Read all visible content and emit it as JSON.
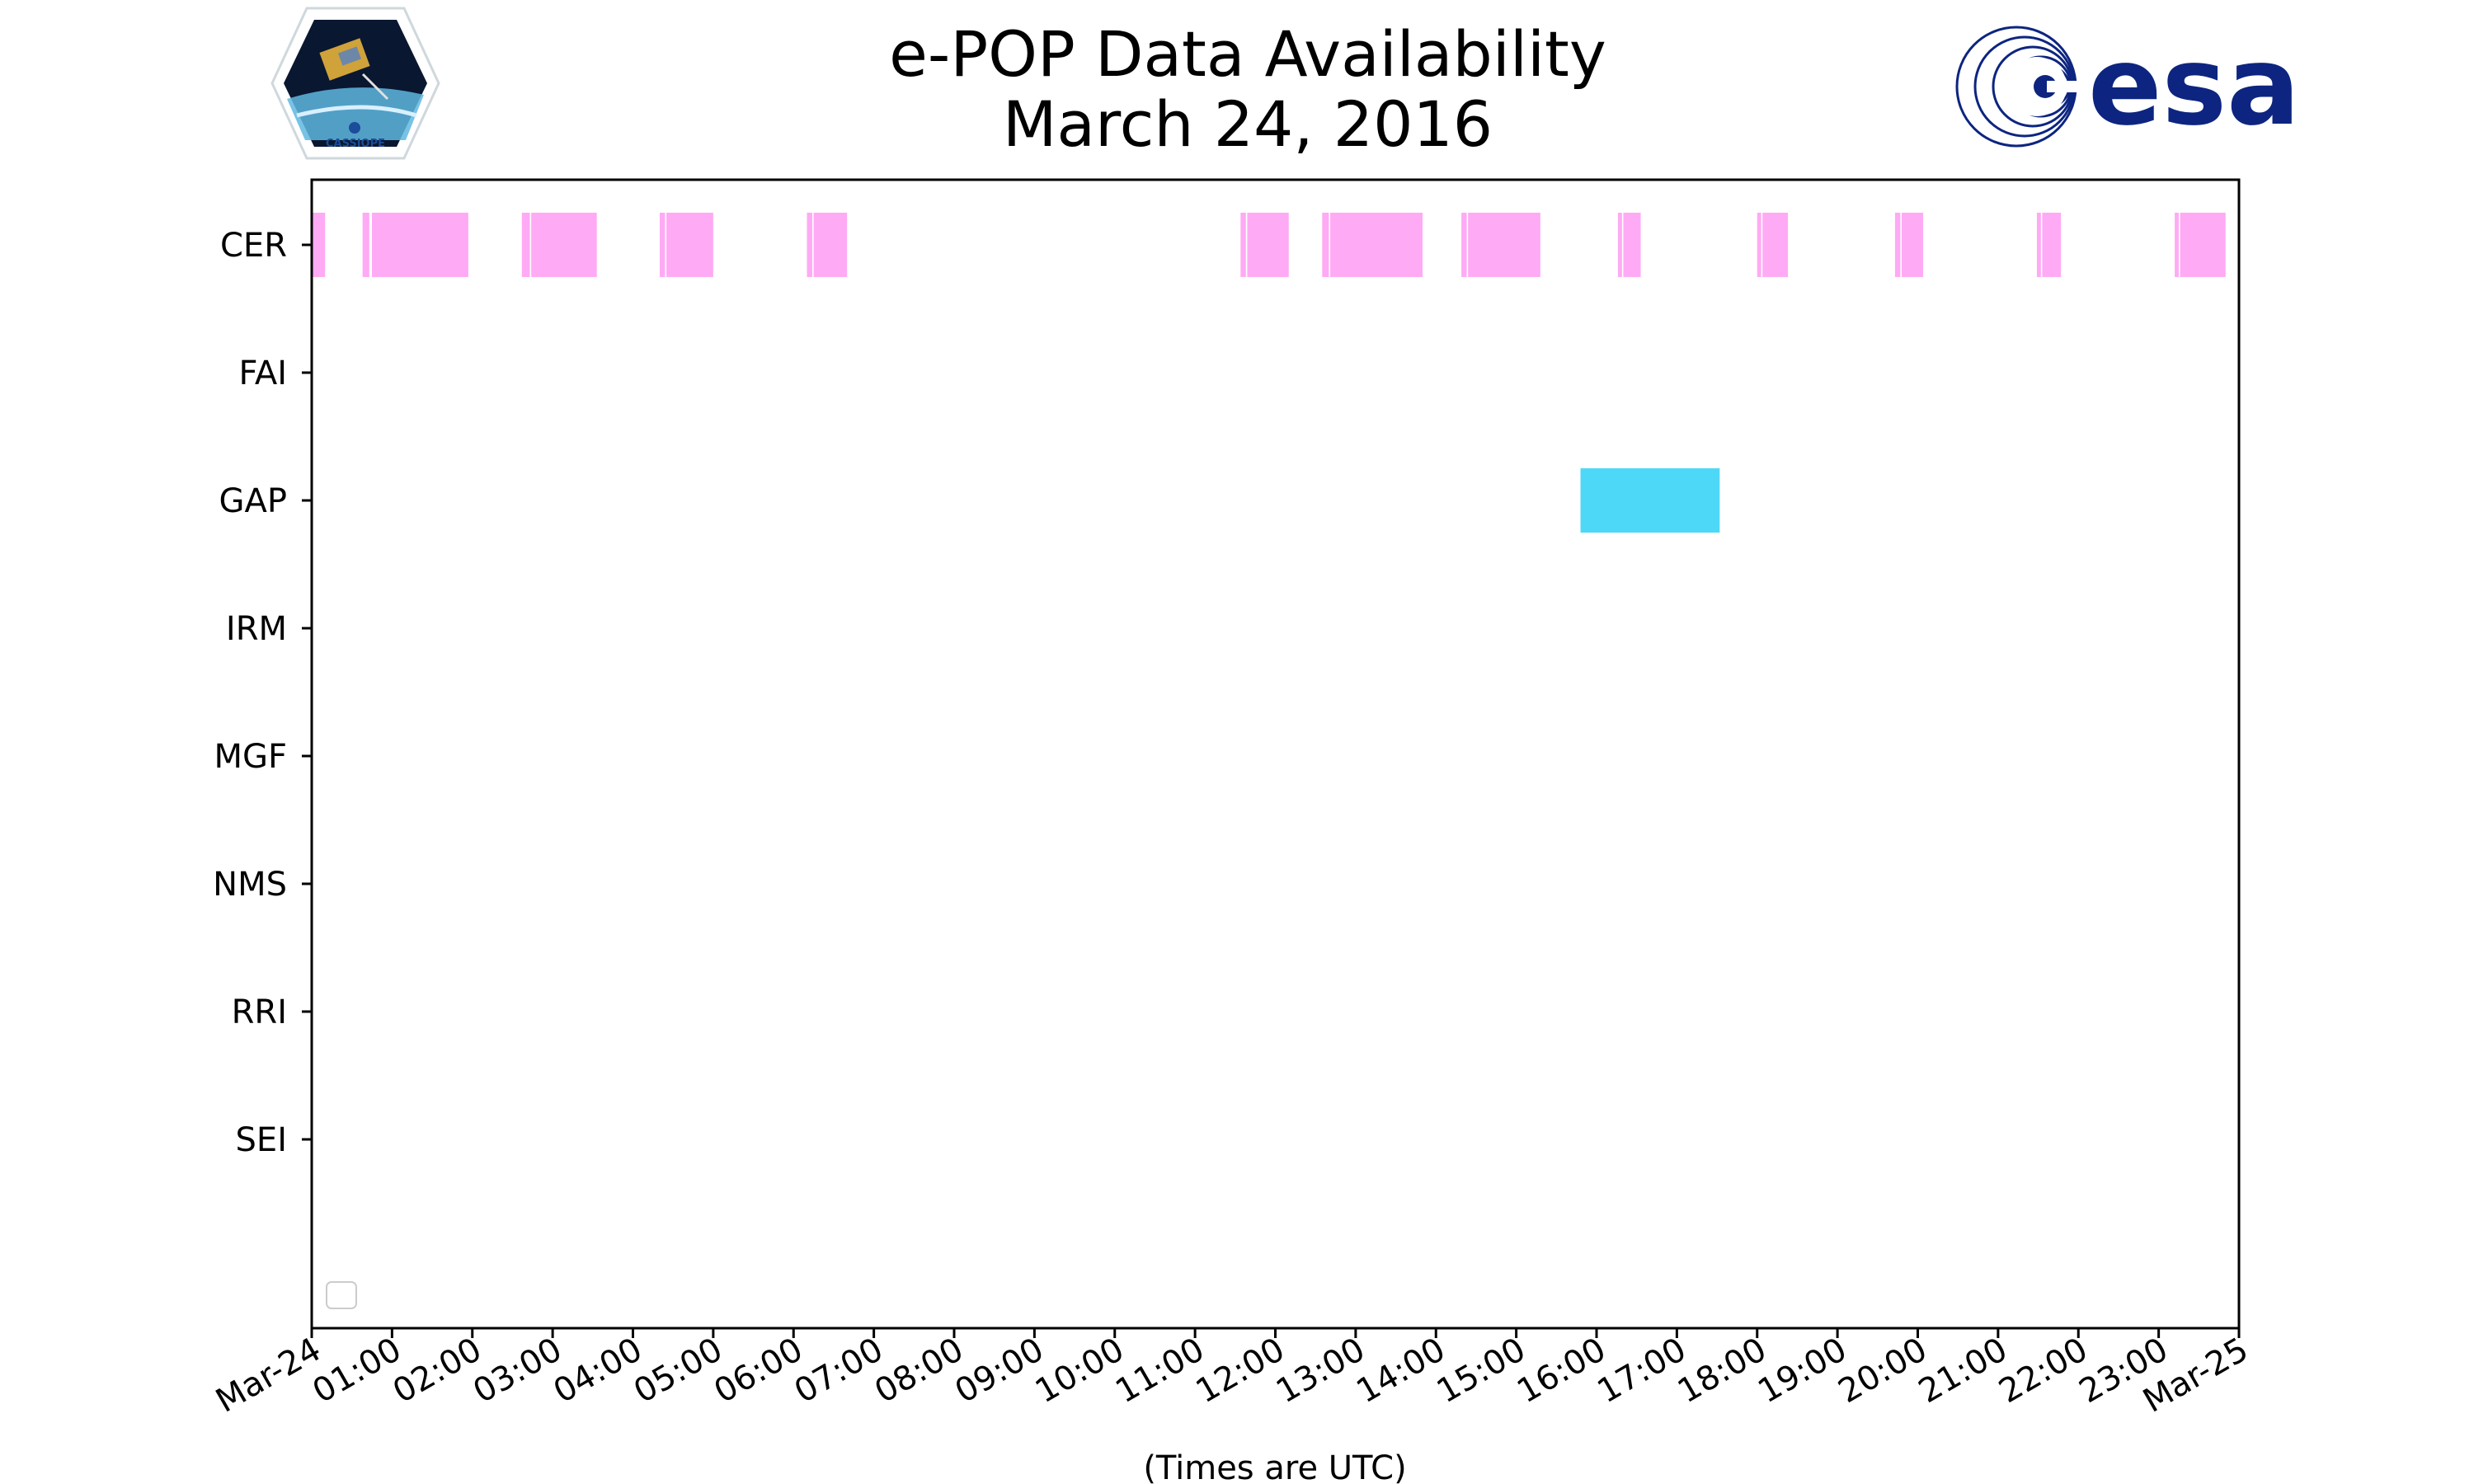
{
  "chart_data": {
    "type": "timeline",
    "title": [
      "e-POP Data Availability",
      "March 24, 2016"
    ],
    "xlabel": "(Times are UTC)",
    "xlim": [
      "2016-03-24T00:00",
      "2016-03-25T00:00"
    ],
    "xtick_labels": [
      "Mar-24",
      "01:00",
      "02:00",
      "03:00",
      "04:00",
      "05:00",
      "06:00",
      "07:00",
      "08:00",
      "09:00",
      "10:00",
      "11:00",
      "12:00",
      "13:00",
      "14:00",
      "15:00",
      "16:00",
      "17:00",
      "18:00",
      "19:00",
      "20:00",
      "21:00",
      "22:00",
      "23:00",
      "Mar-25"
    ],
    "categories": [
      "CER",
      "FAI",
      "GAP",
      "IRM",
      "MGF",
      "NMS",
      "RRI",
      "SEI"
    ],
    "legend": "lower-left, empty",
    "colors": {
      "CER": "#ffaaf5",
      "GAP": "#4ed8f8"
    },
    "series": [
      {
        "category": "CER",
        "intervals": [
          [
            "00:00",
            "00:10"
          ],
          [
            "00:38",
            "00:43"
          ],
          [
            "00:45",
            "01:57"
          ],
          [
            "02:37",
            "02:43"
          ],
          [
            "02:44",
            "03:33"
          ],
          [
            "04:20",
            "04:24"
          ],
          [
            "04:25",
            "05:00"
          ],
          [
            "06:10",
            "06:14"
          ],
          [
            "06:15",
            "06:40"
          ],
          [
            "11:34",
            "11:38"
          ],
          [
            "11:39",
            "12:10"
          ],
          [
            "12:35",
            "12:40"
          ],
          [
            "12:41",
            "13:50"
          ],
          [
            "14:19",
            "14:23"
          ],
          [
            "14:24",
            "15:18"
          ],
          [
            "16:16",
            "16:19"
          ],
          [
            "16:20",
            "16:33"
          ],
          [
            "18:00",
            "18:03"
          ],
          [
            "18:04",
            "18:23"
          ],
          [
            "19:43",
            "19:47"
          ],
          [
            "19:48",
            "20:04"
          ],
          [
            "21:29",
            "21:32"
          ],
          [
            "21:33",
            "21:47"
          ],
          [
            "23:12",
            "23:15"
          ],
          [
            "23:16",
            "23:50"
          ]
        ]
      },
      {
        "category": "FAI",
        "intervals": []
      },
      {
        "category": "GAP",
        "intervals": [
          [
            "15:48",
            "17:32"
          ]
        ]
      },
      {
        "category": "IRM",
        "intervals": []
      },
      {
        "category": "MGF",
        "intervals": []
      },
      {
        "category": "NMS",
        "intervals": []
      },
      {
        "category": "RRI",
        "intervals": []
      },
      {
        "category": "SEI",
        "intervals": []
      }
    ]
  },
  "logos": {
    "left": {
      "name": "cassiope-logo",
      "text": "CASSIOPE"
    },
    "right": {
      "name": "esa-logo",
      "text": "esa",
      "color": "#0d2580"
    }
  }
}
